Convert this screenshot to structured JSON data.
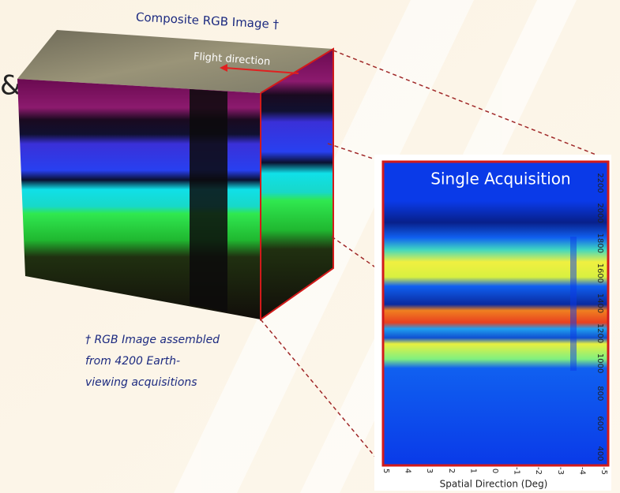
{
  "header": {
    "title": "Composite RGB Image †",
    "ampersand": "&"
  },
  "cube": {
    "arrow_label": "Flight direction"
  },
  "footnote": {
    "lines": [
      "† RGB Image assembled",
      "from 4200 Earth-",
      "viewing acquisitions"
    ]
  },
  "panel": {
    "title": "Single Acquisition",
    "y_labels": [
      "400",
      "600",
      "800",
      "1000",
      "1200",
      "1400",
      "1600",
      "1800",
      "2000",
      "2200"
    ],
    "x_labels": [
      "5",
      "4",
      "3",
      "2",
      "1",
      "0",
      "-1",
      "-2",
      "-3",
      "-4",
      "-5"
    ],
    "x_axis_label": "Spatial Direction (Deg)"
  }
}
